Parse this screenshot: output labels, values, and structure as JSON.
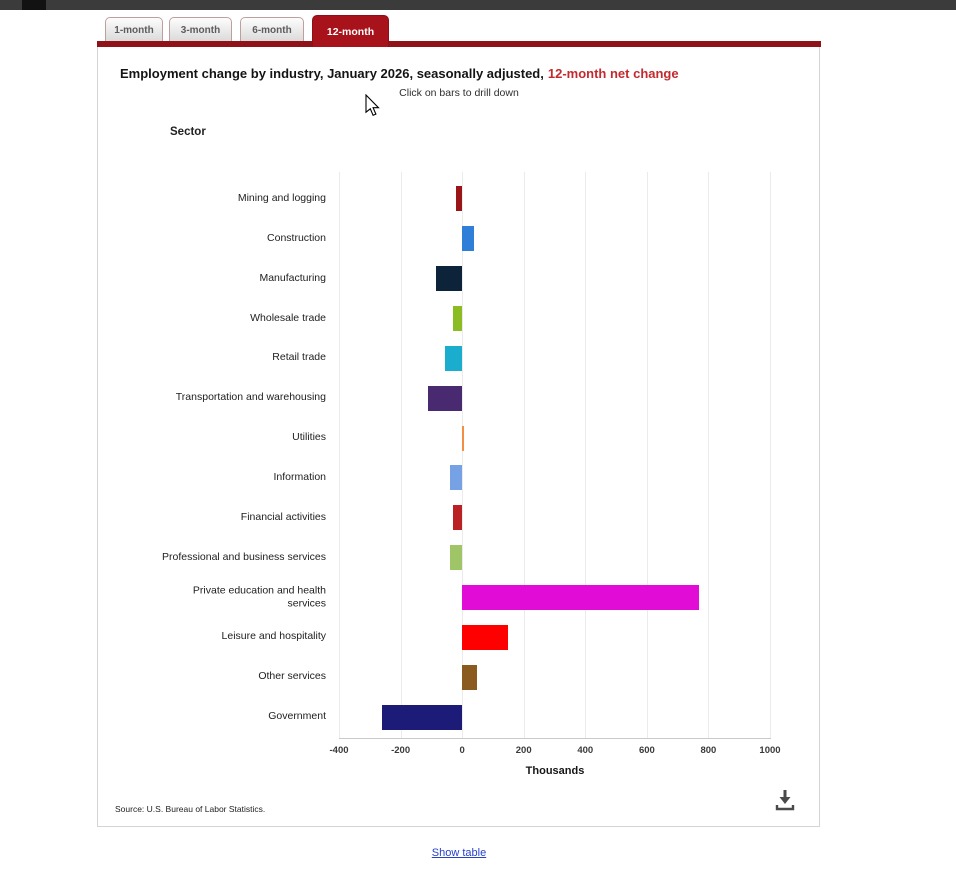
{
  "tabs": [
    {
      "label": "1-month",
      "active": false
    },
    {
      "label": "3-month",
      "active": false
    },
    {
      "label": "6-month",
      "active": false
    },
    {
      "label": "12-month",
      "active": true
    }
  ],
  "header": {
    "title_main": "Employment change by industry, January 2026, seasonally adjusted,",
    "title_highlight": "12-month net change",
    "highlight_color": "#c32a2e",
    "subtitle": "Click on bars to drill down"
  },
  "chart_data": {
    "type": "bar",
    "orientation": "horizontal",
    "title": "Employment change by industry, January 2026, seasonally adjusted, 12-month net change",
    "ylabel": "Sector",
    "xlabel": "Thousands",
    "xlim": [
      -400,
      1000
    ],
    "xticks": [
      -400,
      -200,
      0,
      200,
      400,
      600,
      800,
      1000
    ],
    "grid": true,
    "categories": [
      "Mining and logging",
      "Construction",
      "Manufacturing",
      "Wholesale trade",
      "Retail trade",
      "Transportation and warehousing",
      "Utilities",
      "Information",
      "Financial activities",
      "Professional and business services",
      "Private education and health\nservices",
      "Leisure and hospitality",
      "Other services",
      "Government"
    ],
    "values": [
      -20,
      40,
      -85,
      -30,
      -55,
      -110,
      5,
      -40,
      -30,
      -40,
      770,
      150,
      50,
      -260
    ],
    "colors": [
      "#9a1518",
      "#2f7ed8",
      "#0d233a",
      "#8bbc21",
      "#1aadce",
      "#492970",
      "#f28f43",
      "#77a1e5",
      "#bb2025",
      "#a0c566",
      "#e10dd6",
      "#fe0000",
      "#8a5a1e",
      "#1c1c78"
    ]
  },
  "footer": {
    "source": "Source: U.S. Bureau of Labor Statistics.",
    "download_icon": "download-icon",
    "show_table_label": "Show table",
    "link_color": "#2741c9"
  }
}
